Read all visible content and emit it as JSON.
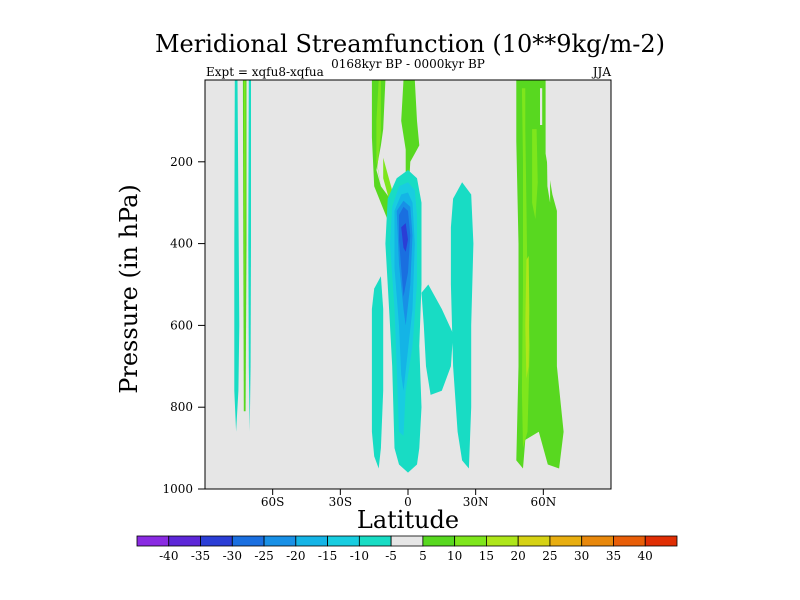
{
  "chart_data": {
    "type": "contour",
    "title": "Meridional Streamfunction (10**9kg/m-2)",
    "experiment": "Expt = xqfu8-xqfua",
    "period": "0168kyr BP - 0000kyr BP",
    "season": "JJA",
    "xlabel": "Latitude",
    "ylabel": "Pressure (in hPa)",
    "xlim": [
      -90,
      90
    ],
    "ylim": [
      1000,
      0
    ],
    "y_ticks": [
      {
        "value": 200,
        "label": "200"
      },
      {
        "value": 400,
        "label": "400"
      },
      {
        "value": 600,
        "label": "600"
      },
      {
        "value": 800,
        "label": "800"
      },
      {
        "value": 1000,
        "label": "1000"
      }
    ],
    "x_ticks": [
      {
        "value": -60,
        "label": "60S"
      },
      {
        "value": -30,
        "label": "30S"
      },
      {
        "value": 0,
        "label": "0"
      },
      {
        "value": 30,
        "label": "30N"
      },
      {
        "value": 60,
        "label": "60N"
      }
    ],
    "colorbar": {
      "levels": [
        -40,
        -35,
        -30,
        -25,
        -20,
        -15,
        -10,
        -5,
        5,
        10,
        15,
        20,
        25,
        30,
        35,
        40
      ],
      "labels": [
        "-40",
        "-35",
        "-30",
        "-25",
        "-20",
        "-15",
        "-10",
        "-5",
        "5",
        "10",
        "15",
        "20",
        "25",
        "30",
        "35",
        "40"
      ],
      "colors": [
        "#8a2be2",
        "#5d27d8",
        "#2b3ed6",
        "#1a6fe0",
        "#1890e6",
        "#14b4e6",
        "#18cde0",
        "#18dcc4",
        "#e6e6e6",
        "#58d820",
        "#7ee61c",
        "#aee61a",
        "#d6d214",
        "#e8ae10",
        "#e8880c",
        "#e85e08",
        "#e02e04"
      ]
    },
    "background_color": "#e6e6e6",
    "contour_features": [
      {
        "name": "tropical-negative-cell",
        "lat_range": [
          -8,
          5
        ],
        "p_range": [
          230,
          960
        ],
        "min_value": -30
      },
      {
        "name": "tropical-weak-negative-upper",
        "lat_range": [
          -15,
          -10
        ],
        "p_range": [
          510,
          950
        ],
        "min_value": -5
      },
      {
        "name": "nh-subtropical-weak-negative",
        "lat_range": [
          18,
          30
        ],
        "p_range": [
          270,
          950
        ],
        "min_value": -5
      },
      {
        "name": "upper-tropical-positive",
        "lat_range": [
          -10,
          5
        ],
        "p_range": [
          0,
          390
        ],
        "max_value": 15
      },
      {
        "name": "nh-midlatitude-positive",
        "lat_range": [
          48,
          68
        ],
        "p_range": [
          0,
          950
        ],
        "max_value": 15
      },
      {
        "name": "sh-polar-weak-bands",
        "lat_range": [
          -78,
          -68
        ],
        "p_range": [
          0,
          880
        ],
        "max_value": 10
      }
    ]
  }
}
